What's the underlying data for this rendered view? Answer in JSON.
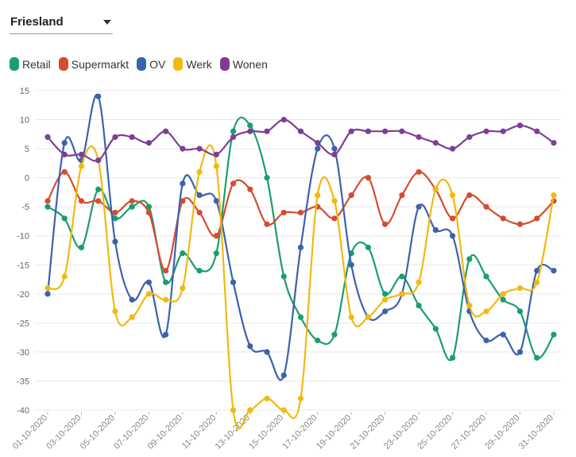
{
  "filter": {
    "region": "Friesland"
  },
  "chart_data": {
    "type": "line",
    "title": "",
    "xlabel": "",
    "ylabel": "",
    "ylim": [
      -40,
      15
    ],
    "yticks": [
      15,
      10,
      5,
      0,
      -5,
      -10,
      -15,
      -20,
      -25,
      -30,
      -35,
      -40
    ],
    "x": [
      "01-10-2020",
      "02-10-2020",
      "03-10-2020",
      "04-10-2020",
      "05-10-2020",
      "06-10-2020",
      "07-10-2020",
      "08-10-2020",
      "09-10-2020",
      "10-10-2020",
      "11-10-2020",
      "12-10-2020",
      "13-10-2020",
      "14-10-2020",
      "15-10-2020",
      "16-10-2020",
      "17-10-2020",
      "18-10-2020",
      "19-10-2020",
      "20-10-2020",
      "21-10-2020",
      "22-10-2020",
      "23-10-2020",
      "24-10-2020",
      "25-10-2020",
      "26-10-2020",
      "27-10-2020",
      "28-10-2020",
      "29-10-2020",
      "30-10-2020",
      "31-10-2020"
    ],
    "x_tick_labels": [
      "01-10-2020",
      "03-10-2020",
      "05-10-2020",
      "07-10-2020",
      "09-10-2020",
      "11-10-2020",
      "13-10-2020",
      "15-10-2020",
      "17-10-2020",
      "19-10-2020",
      "21-10-2020",
      "23-10-2020",
      "25-10-2020",
      "27-10-2020",
      "29-10-2020",
      "31-10-2020"
    ],
    "series": [
      {
        "name": "Retail",
        "color": "#1a9e6e",
        "values": [
          -5,
          -7,
          -12,
          -2,
          -7,
          -5,
          -5,
          -18,
          -13,
          -16,
          -13,
          8,
          9,
          0,
          -17,
          -24,
          -28,
          -27,
          -13,
          -12,
          -20,
          -17,
          -22,
          -26,
          -31,
          -14,
          -17,
          -21,
          -23,
          -31,
          -27
        ]
      },
      {
        "name": "Supermarkt",
        "color": "#d44d2f",
        "values": [
          -4,
          1,
          -4,
          -4,
          -6,
          -4,
          -6,
          -16,
          -4,
          -6,
          -10,
          -1,
          -2,
          -8,
          -6,
          -6,
          -5,
          -7,
          -3,
          0,
          -8,
          -3,
          1,
          -2,
          -7,
          -3,
          -5,
          -7,
          -8,
          -7,
          -4
        ]
      },
      {
        "name": "OV",
        "color": "#3b62ad",
        "values": [
          -20,
          6,
          3,
          14,
          -11,
          -21,
          -18,
          -27,
          -1,
          -3,
          -4,
          -18,
          -29,
          -30,
          -34,
          -12,
          5,
          5,
          -15,
          -24,
          -23,
          -20,
          -5,
          -9,
          -10,
          -23,
          -28,
          -27,
          -30,
          -16,
          -16
        ]
      },
      {
        "name": "Werk",
        "color": "#f2b90f",
        "values": [
          -19,
          -17,
          2,
          3,
          -23,
          -24,
          -20,
          -21,
          -19,
          1,
          2,
          -40,
          -40,
          -38,
          -40,
          -38,
          -3,
          -4,
          -24,
          -24,
          -21,
          -20,
          -18,
          -2,
          -3,
          -22,
          -23,
          -20,
          -19,
          -18,
          -3
        ]
      },
      {
        "name": "Wonen",
        "color": "#7e3e95",
        "values": [
          7,
          4,
          4,
          3,
          7,
          7,
          6,
          8,
          5,
          5,
          4,
          7,
          8,
          8,
          10,
          8,
          6,
          4,
          8,
          8,
          8,
          8,
          7,
          6,
          5,
          7,
          8,
          8,
          9,
          8,
          6
        ]
      }
    ]
  }
}
